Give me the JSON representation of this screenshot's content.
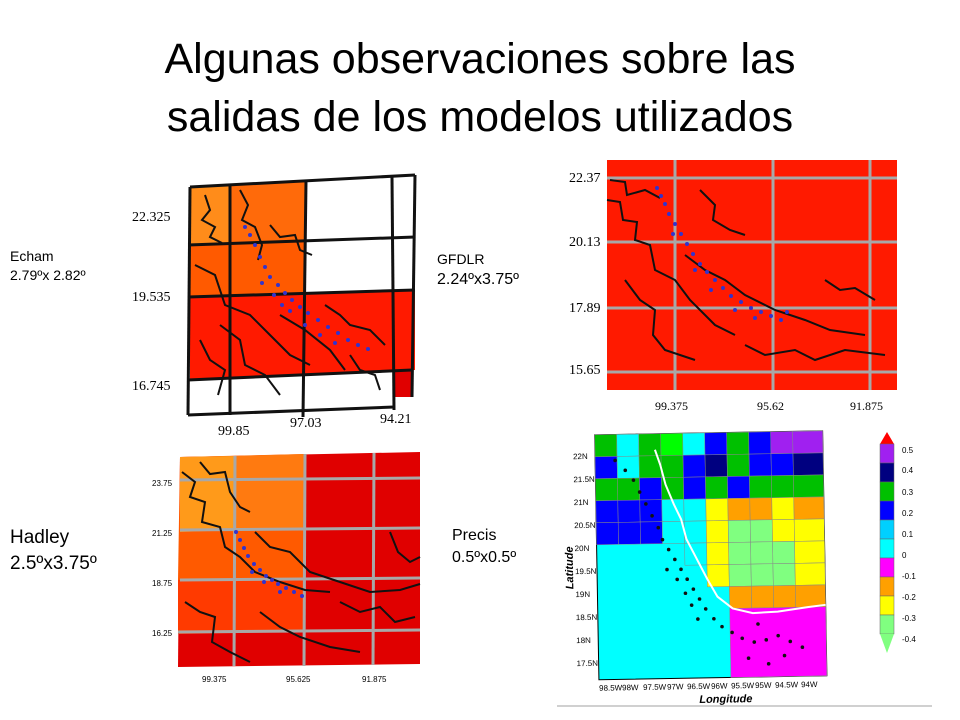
{
  "title": {
    "line1": "Algunas observaciones sobre las",
    "line2": "salidas de los modelos utilizados"
  },
  "panels": {
    "echam": {
      "name": "Echam",
      "resolution": "2.79ºx 2.82º",
      "y_ticks": [
        "22.325",
        "19.535",
        "16.745"
      ],
      "x_ticks": [
        "99.85",
        "97.03",
        "94.21"
      ]
    },
    "gfdlr": {
      "name": "GFDLR",
      "resolution": "2.24ºx3.75º",
      "y_ticks": [
        "22.37",
        "20.13",
        "17.89",
        "15.65"
      ],
      "x_ticks": [
        "99.375",
        "95.62",
        "91.875"
      ]
    },
    "hadley": {
      "name": "Hadley",
      "resolution": "2.5ºx3.75º",
      "y_ticks": [
        "23.75",
        "21.25",
        "18.75",
        "16.25"
      ],
      "x_ticks": [
        "99.375",
        "95.625",
        "91.875"
      ]
    },
    "precis": {
      "name": "Precis",
      "resolution": "0.5ºx0.5º",
      "y_ticks": [
        "22N",
        "21.5N",
        "21N",
        "20.5N",
        "20N",
        "19.5N",
        "19N",
        "18.5N",
        "18N",
        "17.5N"
      ],
      "x_ticks": [
        "98.5W",
        "98W",
        "97.5W",
        "97W",
        "96.5W",
        "96W",
        "95.5W",
        "95W",
        "94.5W",
        "94W"
      ],
      "x_axis_label": "Longitude",
      "y_axis_label": "Latitude",
      "colorbar": [
        "0.5",
        "0.4",
        "0.3",
        "0.2",
        "0.1",
        "0",
        "-0.1",
        "-0.2",
        "-0.3",
        "-0.4"
      ],
      "colorbar_colors": [
        "#a020f0",
        "#000080",
        "#00c000",
        "#0000ff",
        "#00d0ff",
        "#00ffff",
        "#ff00ff",
        "#ffa000",
        "#ffff00",
        "#80ff80"
      ]
    }
  },
  "colors": {
    "red": "#ff1a00",
    "orange_red": "#ff5a00",
    "orange": "#ff8c1a",
    "dark_red": "#e00000",
    "grid": "#a8a8a8",
    "dots": "#3333cc"
  }
}
